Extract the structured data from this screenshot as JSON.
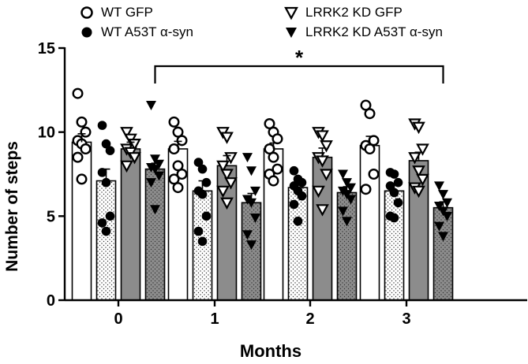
{
  "chart_data": {
    "type": "bar",
    "title": "",
    "xlabel": "Months",
    "ylabel": "Number of steps",
    "categories": [
      "0",
      "1",
      "2",
      "3"
    ],
    "yticks": [
      "0",
      "5",
      "10",
      "15"
    ],
    "ylim": [
      0,
      15
    ],
    "grid": false,
    "legend_position": "top",
    "series": [
      {
        "name": "WT GFP",
        "marker": "open-circle",
        "fill": "white",
        "values": [
          9.4,
          9.0,
          9.0,
          9.2
        ],
        "sem": [
          0.5,
          0.45,
          0.35,
          0.55
        ],
        "points": [
          [
            12.3,
            10.6,
            10.0,
            9.5,
            9.3,
            9.0,
            8.5,
            7.2
          ],
          [
            10.6,
            10.0,
            9.5,
            9.0,
            8.0,
            7.5,
            7.2,
            6.7
          ],
          [
            10.5,
            10.0,
            9.6,
            9.0,
            8.5,
            7.8,
            7.5,
            7.1
          ],
          [
            11.6,
            11.1,
            9.5,
            9.2,
            9.0,
            7.5,
            6.6
          ]
        ]
      },
      {
        "name": "WT A53T α-syn",
        "marker": "filled-circle",
        "fill": "dotted",
        "values": [
          7.1,
          6.5,
          6.7,
          6.5
        ],
        "sem": [
          0.7,
          0.6,
          0.3,
          0.4
        ],
        "points": [
          [
            10.4,
            9.3,
            8.9,
            7.6,
            7.0,
            5.0,
            4.6,
            4.1
          ],
          [
            8.2,
            7.8,
            7.0,
            6.5,
            6.3,
            5.0,
            4.1,
            3.5
          ],
          [
            7.7,
            7.2,
            7.0,
            6.8,
            6.5,
            6.2,
            5.7,
            4.7
          ],
          [
            7.6,
            7.5,
            7.0,
            6.8,
            6.4,
            5.8,
            5.0,
            4.9
          ]
        ]
      },
      {
        "name": "LRRK2 KD GFP",
        "marker": "open-triangle-down",
        "fill": "gray",
        "values": [
          9.0,
          8.0,
          8.5,
          8.3
        ],
        "sem": [
          0.4,
          0.6,
          0.55,
          0.5
        ],
        "points": [
          [
            10.0,
            9.6,
            9.3,
            9.0,
            8.8,
            8.5,
            8.0
          ],
          [
            10.0,
            9.7,
            8.5,
            8.0,
            7.5,
            7.0,
            6.5,
            5.8
          ],
          [
            10.0,
            9.8,
            9.2,
            8.5,
            8.3,
            7.5,
            6.5,
            5.4
          ],
          [
            10.5,
            10.3,
            9.0,
            8.5,
            7.7,
            7.2,
            6.7,
            6.5
          ]
        ]
      },
      {
        "name": "LRRK2 KD A53T α-syn",
        "marker": "filled-triangle-down",
        "fill": "gray-dotted",
        "values": [
          7.8,
          5.8,
          6.4,
          5.5
        ],
        "sem": [
          0.35,
          0.55,
          0.35,
          0.35
        ],
        "points": [
          [
            11.6,
            8.4,
            8.1,
            7.9,
            7.8,
            7.4,
            7.0,
            5.4
          ],
          [
            8.5,
            7.7,
            6.5,
            6.0,
            5.8,
            4.9,
            3.9,
            3.3
          ],
          [
            7.5,
            7.0,
            6.7,
            6.5,
            6.3,
            6.0,
            5.3,
            4.7
          ],
          [
            6.8,
            6.3,
            5.8,
            5.6,
            5.3,
            5.0,
            4.4,
            3.8
          ]
        ]
      }
    ],
    "annotations": [
      {
        "text": "*",
        "type": "significance-bracket",
        "from": "month 0 LRRK2 KD A53T α-syn",
        "to": "month 3 LRRK2 KD A53T α-syn"
      }
    ]
  }
}
